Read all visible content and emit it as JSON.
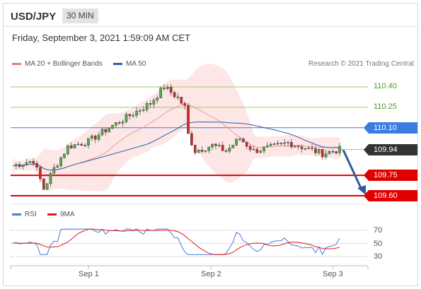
{
  "header": {
    "symbol": "USD/JPY",
    "timeframe": "30 MIN"
  },
  "datetime": "Friday, September 3, 2021 1:59:09 AM CET",
  "legend": {
    "ma20": {
      "label": "MA 20 + Bollinger Bands",
      "color": "#ef7b7b"
    },
    "ma50": {
      "label": "MA 50",
      "color": "#2f5fa8"
    },
    "rsi": {
      "label": "RSI",
      "color": "#4a78d8"
    },
    "ma9": {
      "label": "9MA",
      "color": "#e21a1a"
    }
  },
  "research": "Research © 2021 Trading Central",
  "levels": [
    {
      "value": "110.40",
      "color": "#9acd5a",
      "kind": "text"
    },
    {
      "value": "110.25",
      "color": "#9acd5a",
      "kind": "text"
    },
    {
      "value": "110.10",
      "color": "#3a7ce0",
      "kind": "badge"
    },
    {
      "value": "109.94",
      "color": "#333333",
      "kind": "badge-dotted"
    },
    {
      "value": "109.75",
      "color": "#e00000",
      "kind": "badge"
    },
    {
      "value": "109.60",
      "color": "#e00000",
      "kind": "badge"
    }
  ],
  "rsi_levels": [
    "70",
    "50",
    "30"
  ],
  "x_ticks": [
    "Sep 1",
    "Sep 2",
    "Sep 3"
  ],
  "chart_data": {
    "type": "candlestick",
    "price_range": [
      109.6,
      110.4
    ],
    "pivot": 109.94,
    "resistances": [
      110.1,
      110.25,
      110.4
    ],
    "supports": [
      109.75,
      109.6
    ],
    "rsi_range": [
      30,
      70
    ]
  }
}
